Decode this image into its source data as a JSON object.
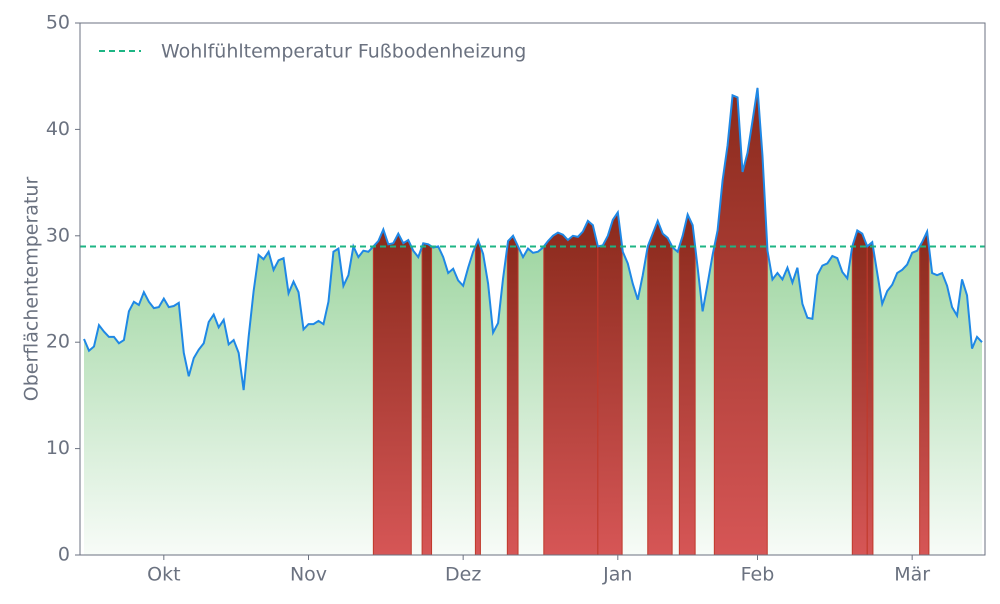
{
  "chart_data": {
    "type": "threshold-area",
    "ylabel": "Oberflächentemperatur",
    "categories": [
      null,
      null,
      null,
      null,
      null,
      null,
      null,
      null,
      null,
      null,
      null,
      null,
      null,
      null,
      null,
      null,
      "Okt",
      null,
      null,
      null,
      null,
      null,
      null,
      null,
      null,
      null,
      null,
      null,
      null,
      null,
      null,
      null,
      null,
      null,
      null,
      null,
      null,
      null,
      null,
      null,
      null,
      null,
      null,
      null,
      null,
      "Nov",
      null,
      null,
      null,
      null,
      null,
      null,
      null,
      null,
      null,
      null,
      null,
      null,
      null,
      null,
      null,
      null,
      null,
      null,
      null,
      null,
      null,
      null,
      null,
      null,
      null,
      null,
      null,
      null,
      null,
      null,
      "Dez",
      null,
      null,
      null,
      null,
      null,
      null,
      null,
      null,
      null,
      null,
      null,
      null,
      null,
      null,
      null,
      null,
      null,
      null,
      null,
      null,
      null,
      null,
      null,
      null,
      null,
      null,
      null,
      null,
      null,
      null,
      "Jan",
      null,
      null,
      null,
      null,
      null,
      null,
      null,
      null,
      null,
      null,
      null,
      null,
      null,
      null,
      null,
      null,
      null,
      null,
      null,
      null,
      null,
      null,
      null,
      null,
      null,
      null,
      null,
      "Feb",
      null,
      null,
      null,
      null,
      null,
      null,
      null,
      null,
      null,
      null,
      null,
      null,
      null,
      null,
      null,
      null,
      null,
      null,
      null,
      null,
      null,
      null,
      null,
      null,
      null,
      null,
      null,
      null,
      null,
      null,
      "Mär",
      null,
      null,
      null,
      null,
      null,
      null,
      null,
      null,
      null,
      null,
      null,
      null,
      null,
      null
    ],
    "values": [
      20.3,
      19.2,
      19.6,
      21.6,
      21.0,
      20.5,
      20.5,
      19.9,
      20.2,
      22.9,
      23.8,
      23.5,
      24.7,
      23.8,
      23.2,
      23.3,
      24.1,
      23.3,
      23.4,
      23.7,
      19.0,
      16.8,
      18.5,
      19.3,
      19.9,
      21.9,
      22.6,
      21.4,
      22.1,
      19.8,
      20.2,
      19.0,
      15.5,
      20.5,
      24.8,
      28.2,
      27.8,
      28.5,
      26.8,
      27.7,
      27.9,
      24.6,
      25.7,
      24.7,
      21.2,
      21.7,
      21.7,
      22.0,
      21.7,
      23.8,
      28.5,
      28.8,
      25.3,
      26.3,
      29.0,
      28.0,
      28.6,
      28.5,
      29.0,
      29.5,
      30.6,
      29.2,
      29.3,
      30.2,
      29.3,
      29.6,
      28.6,
      28.0,
      29.3,
      29.2,
      28.9,
      29.0,
      28.0,
      26.5,
      26.9,
      25.8,
      25.3,
      27.0,
      28.5,
      29.6,
      28.3,
      25.5,
      20.9,
      21.8,
      26.0,
      29.5,
      30.0,
      29.0,
      28.0,
      28.8,
      28.4,
      28.5,
      28.9,
      29.5,
      30.0,
      30.3,
      30.1,
      29.6,
      30.0,
      29.9,
      30.4,
      31.4,
      31.0,
      29.0,
      29.1,
      30.0,
      31.5,
      32.2,
      28.5,
      27.4,
      25.5,
      24.0,
      26.3,
      29.0,
      30.2,
      31.4,
      30.2,
      29.8,
      28.9,
      28.5,
      30.0,
      32.0,
      31.0,
      27.0,
      22.9,
      25.5,
      28.2,
      30.5,
      35.2,
      38.5,
      43.2,
      43.0,
      36.0,
      37.8,
      40.8,
      43.9,
      37.5,
      28.6,
      25.9,
      26.5,
      25.9,
      27.0,
      25.6,
      27.0,
      23.6,
      22.3,
      22.2,
      26.3,
      27.2,
      27.4,
      28.1,
      27.9,
      26.6,
      26.0,
      29.0,
      30.5,
      30.2,
      29.0,
      29.4,
      26.5,
      23.6,
      24.8,
      25.4,
      26.5,
      26.8,
      27.3,
      28.4,
      28.6,
      29.4,
      30.4,
      26.5,
      26.3,
      26.5,
      25.3,
      23.3,
      22.5,
      25.9,
      24.4,
      19.4,
      20.5,
      20.0
    ],
    "color": "#1f88e5",
    "above_color": "#b5372b",
    "below_color": "#6cc070",
    "reference_line": {
      "name": "Wohlfühltemperatur Fußbodenheizung",
      "value": 29,
      "color": "#1db584"
    },
    "ylim": [
      0,
      50
    ],
    "yticks": [
      0,
      10,
      20,
      30,
      40,
      50
    ],
    "legend": "upper-left",
    "grid": false
  }
}
